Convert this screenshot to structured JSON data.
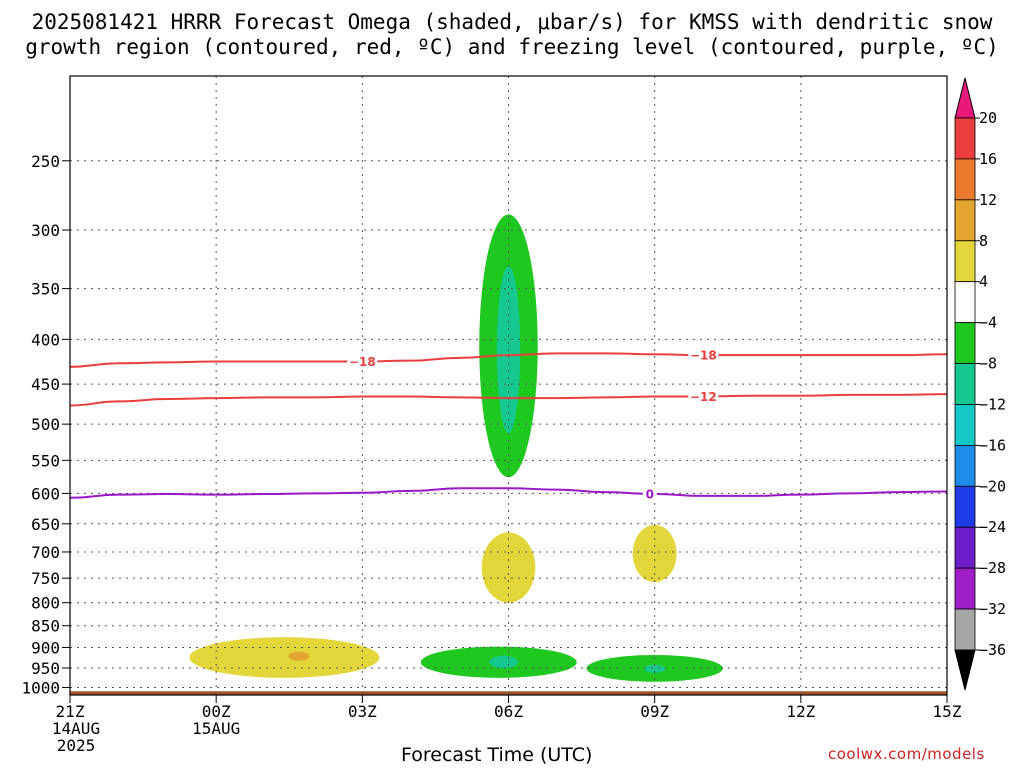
{
  "title_line1": "2025081421 HRRR Forecast Omega (shaded, μbar/s) for KMSS with dendritic snow",
  "title_line2": "growth region (contoured, red, ºC) and freezing level (contoured, purple, ºC)",
  "x_axis_title": "Forecast Time (UTC)",
  "credit": "coolwx.com/models",
  "chart_data": {
    "type": "time-height contour",
    "x_hours": [
      0,
      3,
      6,
      9,
      12,
      15,
      18
    ],
    "x_tick_labels": [
      [
        "21Z",
        "14AUG",
        "2025"
      ],
      [
        "00Z",
        "15AUG"
      ],
      [
        "03Z"
      ],
      [
        "06Z"
      ],
      [
        "09Z"
      ],
      [
        "12Z"
      ],
      [
        "15Z"
      ]
    ],
    "xlim_hours": [
      0,
      18
    ],
    "y_pressure_levels": [
      250,
      300,
      350,
      400,
      450,
      500,
      550,
      600,
      650,
      700,
      750,
      800,
      850,
      900,
      950,
      1000
    ],
    "ylim_pressure": [
      1020,
      200
    ],
    "y_scale": "log-pressure",
    "grid": true,
    "surface_pressure": 1010,
    "colorbar": {
      "levels": [
        "20",
        "16",
        "12",
        "8",
        "4",
        "−4",
        "−8",
        "−12",
        "−16",
        "−20",
        "−24",
        "−28",
        "−32",
        "−36"
      ],
      "colors": [
        "#e8197a",
        "#ea3e3e",
        "#ea7b2e",
        "#e3a530",
        "#e3d63a",
        "#ffffff",
        "#1ec81e",
        "#15c890",
        "#15c8c8",
        "#1e8ce8",
        "#1e3ce8",
        "#6e1ec8",
        "#a01ec8",
        "#a6a6a6",
        "#000000"
      ]
    },
    "contours": [
      {
        "value": "-18",
        "color": "#ea3e3e",
        "label": "−18",
        "points": [
          [
            0,
            430
          ],
          [
            1,
            426
          ],
          [
            2,
            425
          ],
          [
            3,
            424
          ],
          [
            4,
            424
          ],
          [
            5,
            424
          ],
          [
            6,
            424
          ],
          [
            7,
            423
          ],
          [
            8,
            420
          ],
          [
            9,
            417
          ],
          [
            10,
            415
          ],
          [
            11,
            415
          ],
          [
            12,
            416
          ],
          [
            13,
            417
          ],
          [
            14,
            417
          ],
          [
            15,
            417
          ],
          [
            16,
            417
          ],
          [
            17,
            417
          ],
          [
            18,
            416
          ]
        ],
        "label_hours": [
          6.0,
          13.0
        ]
      },
      {
        "value": "-12",
        "color": "#ea3e3e",
        "label": "−12",
        "points": [
          [
            0,
            476
          ],
          [
            1,
            471
          ],
          [
            2,
            468
          ],
          [
            3,
            467
          ],
          [
            4,
            466
          ],
          [
            5,
            466
          ],
          [
            6,
            465
          ],
          [
            7,
            465
          ],
          [
            8,
            466
          ],
          [
            9,
            467
          ],
          [
            10,
            467
          ],
          [
            11,
            466
          ],
          [
            12,
            465
          ],
          [
            13,
            465
          ],
          [
            14,
            464
          ],
          [
            15,
            464
          ],
          [
            16,
            463
          ],
          [
            17,
            463
          ],
          [
            18,
            462
          ]
        ],
        "label_hours": [
          13.0
        ]
      },
      {
        "value": "0",
        "color": "#9b16c8",
        "label": "0",
        "points": [
          [
            0,
            607
          ],
          [
            1,
            602
          ],
          [
            2,
            601
          ],
          [
            3,
            602
          ],
          [
            4,
            601
          ],
          [
            5,
            600
          ],
          [
            6,
            599
          ],
          [
            7,
            596
          ],
          [
            8,
            592
          ],
          [
            9,
            592
          ],
          [
            10,
            594
          ],
          [
            11,
            598
          ],
          [
            12,
            601
          ],
          [
            13,
            604
          ],
          [
            14,
            604
          ],
          [
            15,
            602
          ],
          [
            16,
            600
          ],
          [
            17,
            598
          ],
          [
            18,
            597
          ]
        ],
        "label_hours": [
          11.9
        ]
      }
    ],
    "omega_regions": [
      {
        "level": "-4 to -8",
        "color": "#1ec81e",
        "center_hour": 9.0,
        "p_top": 288,
        "p_bottom": 575,
        "half_width_hours": 0.6
      },
      {
        "level": "-8 to -12",
        "color": "#15c890",
        "center_hour": 9.0,
        "p_top": 330,
        "p_bottom": 512,
        "half_width_hours": 0.24
      },
      {
        "level": "4 to 8",
        "color": "#e3d63a",
        "center_hour": 9.0,
        "p_top": 665,
        "p_bottom": 800,
        "half_width_hours": 0.55
      },
      {
        "level": "4 to 8",
        "color": "#e3d63a",
        "center_hour": 12.0,
        "p_top": 652,
        "p_bottom": 758,
        "half_width_hours": 0.45
      },
      {
        "level": "4 to 8",
        "color": "#e3d63a",
        "center_hour": 4.4,
        "p_top": 876,
        "p_bottom": 975,
        "half_width_hours": 1.95
      },
      {
        "level": "8 to 12",
        "color": "#e3a530",
        "center_hour": 4.7,
        "p_top": 910,
        "p_bottom": 932,
        "half_width_hours": 0.22
      },
      {
        "level": "-4 to -8",
        "color": "#1ec81e",
        "center_hour": 8.8,
        "p_top": 898,
        "p_bottom": 975,
        "half_width_hours": 1.6
      },
      {
        "level": "-8 to -12",
        "color": "#15c890",
        "center_hour": 8.9,
        "p_top": 920,
        "p_bottom": 950,
        "half_width_hours": 0.3
      },
      {
        "level": "-4 to -8",
        "color": "#1ec81e",
        "center_hour": 12.0,
        "p_top": 918,
        "p_bottom": 985,
        "half_width_hours": 1.4
      },
      {
        "level": "-8 to -12",
        "color": "#15c890",
        "center_hour": 12.0,
        "p_top": 942,
        "p_bottom": 962,
        "half_width_hours": 0.22
      }
    ]
  }
}
